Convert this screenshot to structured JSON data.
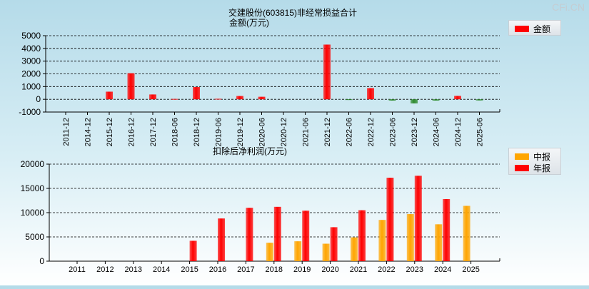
{
  "watermark": "CFi.CN",
  "chart_data": [
    {
      "type": "bar",
      "title": "交建股份(603815)非经常损益合计",
      "subtitle": "金额(万元)",
      "legend": [
        {
          "name": "金额",
          "color": "#ff0000"
        }
      ],
      "legend_position": "top-right",
      "categories": [
        "2011-12",
        "2014-12",
        "2015-12",
        "2016-12",
        "2017-12",
        "2018-06",
        "2018-12",
        "2019-06",
        "2019-12",
        "2020-06",
        "2020-12",
        "2021-06",
        "2021-12",
        "2022-06",
        "2022-12",
        "2023-06",
        "2023-12",
        "2024-06",
        "2024-12",
        "2025-06"
      ],
      "values": [
        0,
        0,
        600,
        2050,
        380,
        30,
        960,
        40,
        260,
        200,
        0,
        0,
        4300,
        -30,
        880,
        -100,
        -320,
        -100,
        270,
        -90
      ],
      "ylim": [
        -1000,
        5000
      ],
      "yticks": [
        5000,
        4000,
        3000,
        2000,
        1000,
        0,
        -1000
      ],
      "positive_color": "#ff0000",
      "negative_color": "#2e8b2e",
      "grid": true
    },
    {
      "type": "bar",
      "title": "扣除后净利润(万元)",
      "legend": [
        {
          "name": "中报",
          "color": "#ffa500"
        },
        {
          "name": "年报",
          "color": "#ff0000"
        }
      ],
      "legend_position": "top-right",
      "categories": [
        "2011",
        "2012",
        "2013",
        "2014",
        "2015",
        "2016",
        "2017",
        "2018",
        "2019",
        "2020",
        "2021",
        "2022",
        "2023",
        "2024",
        "2025"
      ],
      "series": [
        {
          "name": "中报",
          "color": "#ffa500",
          "values": [
            null,
            null,
            null,
            null,
            null,
            null,
            null,
            3800,
            4100,
            3600,
            4900,
            8500,
            9700,
            7600,
            11400
          ]
        },
        {
          "name": "年报",
          "color": "#ff0000",
          "values": [
            null,
            null,
            null,
            null,
            4200,
            8800,
            11000,
            11200,
            10400,
            7000,
            10500,
            17200,
            17600,
            12800,
            null
          ]
        }
      ],
      "ylim": [
        0,
        20000
      ],
      "yticks": [
        20000,
        15000,
        10000,
        5000,
        0
      ],
      "grid": true
    }
  ]
}
